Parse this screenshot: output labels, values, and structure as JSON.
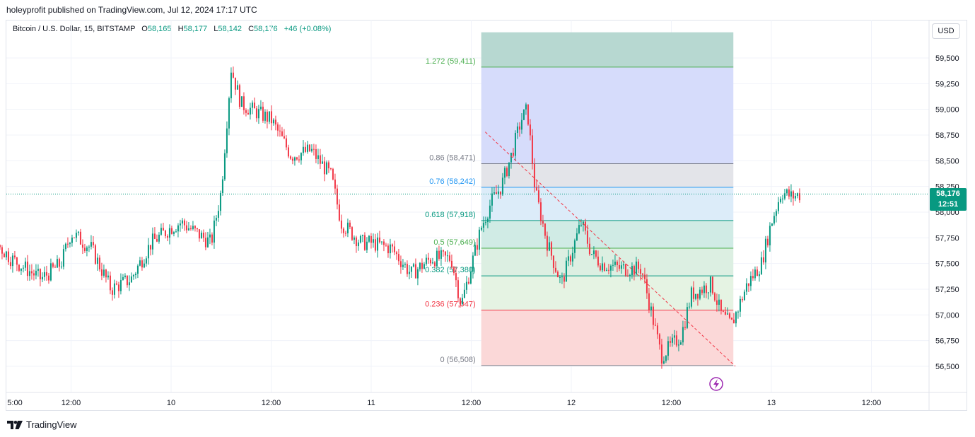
{
  "header": {
    "published": "holeyprofit published on TradingView.com, Jul 12, 2024 17:17 UTC"
  },
  "legend": {
    "symbol": "Bitcoin / U.S. Dollar, 15, BITSTAMP",
    "o_label": "O",
    "o_value": "58,165",
    "h_label": "H",
    "h_value": "58,177",
    "l_label": "L",
    "l_value": "58,142",
    "c_label": "C",
    "c_value": "58,176",
    "change": "+46 (+0.08%)"
  },
  "currency_button": "USD",
  "last_price": {
    "price": "58,176",
    "countdown": "12:51"
  },
  "footer": {
    "brand": "TradingView"
  },
  "colors": {
    "up": "#089981",
    "down": "#f23645",
    "accent": "#2962ff"
  },
  "chart_data": {
    "type": "candlestick",
    "symbol": "BTCUSD",
    "interval": "15",
    "y_ticks": [
      56500,
      56750,
      57000,
      57250,
      57500,
      57750,
      58000,
      58250,
      58500,
      58750,
      59000,
      59250,
      59500
    ],
    "y_tick_labels": [
      "56,500",
      "56,750",
      "57,000",
      "57,250",
      "57,500",
      "57,750",
      "58,000",
      "58,250",
      "58,500",
      "58,750",
      "59,000",
      "59,250",
      "59,500"
    ],
    "ylim": [
      56250,
      59750
    ],
    "x_ticks": [
      0.25,
      0.5,
      1,
      1.5,
      2,
      2.5,
      3,
      3.5,
      4
    ],
    "x_tick_labels": [
      "5:00",
      "12:00",
      "10",
      "12:00",
      "11",
      "12:00",
      "12",
      "12:00",
      "13",
      "12:00"
    ],
    "x_tick_values": [
      -0.29,
      0.5,
      1,
      1.5,
      2,
      2.5,
      3,
      3.5,
      4,
      4.5
    ],
    "last_price": 58176,
    "fib_retracement": [
      {
        "level": "1.272",
        "price": 59411,
        "label": "1.272 (59,411)",
        "color": "#4caf50",
        "fill": "#b7d8d1"
      },
      {
        "level": "0.86",
        "price": 58471,
        "label": "0.86 (58,471)",
        "color": "#787b86",
        "fill": "#d6dcfb"
      },
      {
        "level": "0.76",
        "price": 58242,
        "label": "0.76 (58,242)",
        "color": "#2196f3",
        "fill": "#e3e4e9"
      },
      {
        "level": "0.618",
        "price": 57918,
        "label": "0.618 (57,918)",
        "color": "#089981",
        "fill": "#dcecf9"
      },
      {
        "level": "0.5",
        "price": 57649,
        "label": "0.5 (57,649)",
        "color": "#4caf50",
        "fill": "#d0ebe5"
      },
      {
        "level": "0.382",
        "price": 57380,
        "label": "0.382 (57,380)",
        "color": "#089981",
        "fill": "#dcefe2"
      },
      {
        "level": "0.236",
        "price": 57047,
        "label": "0.236 (57,047)",
        "color": "#f23645",
        "fill": "#e5f3e3"
      },
      {
        "level": "0",
        "price": 56508,
        "label": "0 (56,508)",
        "color": "#787b86",
        "fill": "#fbd8d8"
      }
    ],
    "fib_top_price": 59750,
    "fib_x_range": [
      2.55,
      3.81
    ],
    "trend_line": {
      "from": [
        2.57,
        58780
      ],
      "to": [
        3.82,
        56500
      ]
    },
    "candle_anchors": [
      [
        -0.29,
        57300
      ],
      [
        -0.15,
        57450
      ],
      [
        -0.05,
        57600
      ],
      [
        0.1,
        57750
      ],
      [
        0.2,
        57550
      ],
      [
        0.35,
        57350
      ],
      [
        0.45,
        57500
      ],
      [
        0.5,
        57800
      ],
      [
        0.6,
        57650
      ],
      [
        0.7,
        57250
      ],
      [
        0.8,
        57350
      ],
      [
        0.9,
        57700
      ],
      [
        1.0,
        57850
      ],
      [
        1.05,
        57900
      ],
      [
        1.2,
        57700
      ],
      [
        1.25,
        58200
      ],
      [
        1.3,
        59400
      ],
      [
        1.35,
        59050
      ],
      [
        1.5,
        58900
      ],
      [
        1.6,
        58550
      ],
      [
        1.7,
        58600
      ],
      [
        1.8,
        58350
      ],
      [
        1.85,
        57900
      ],
      [
        1.95,
        57700
      ],
      [
        2.0,
        57700
      ],
      [
        2.1,
        57650
      ],
      [
        2.2,
        57400
      ],
      [
        2.3,
        57550
      ],
      [
        2.4,
        57550
      ],
      [
        2.45,
        57100
      ],
      [
        2.55,
        57850
      ],
      [
        2.6,
        58100
      ],
      [
        2.65,
        58250
      ],
      [
        2.7,
        58550
      ],
      [
        2.75,
        58900
      ],
      [
        2.78,
        59000
      ],
      [
        2.82,
        58200
      ],
      [
        2.88,
        57700
      ],
      [
        2.95,
        57300
      ],
      [
        3.0,
        57600
      ],
      [
        3.05,
        57900
      ],
      [
        3.1,
        57600
      ],
      [
        3.15,
        57500
      ],
      [
        3.25,
        57450
      ],
      [
        3.35,
        57450
      ],
      [
        3.45,
        56600
      ],
      [
        3.55,
        56800
      ],
      [
        3.6,
        57200
      ],
      [
        3.7,
        57300
      ],
      [
        3.75,
        57000
      ],
      [
        3.8,
        56900
      ],
      [
        3.88,
        57300
      ],
      [
        3.95,
        57500
      ],
      [
        4.0,
        57900
      ],
      [
        4.05,
        58200
      ],
      [
        4.1,
        58150
      ],
      [
        4.15,
        58176
      ]
    ]
  }
}
